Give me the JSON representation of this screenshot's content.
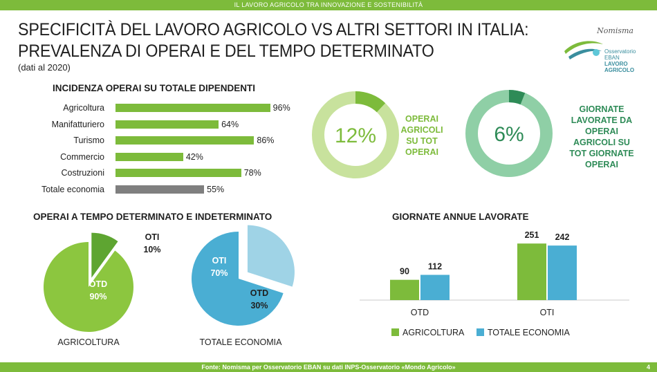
{
  "header": {
    "banner": "IL LAVORO AGRICOLO TRA INNOVAZIONE E SOSTENIBILITÀ"
  },
  "title": {
    "line1": "SPECIFICITÀ DEL LAVORO AGRICOLO VS ALTRI SETTORI IN ITALIA:",
    "line2": "PREVALENZA DI OPERAI E DEL TEMPO DETERMINATO",
    "subtitle": "(dati al 2020)"
  },
  "logo": {
    "brand": "Nomisma",
    "line1": "Osservatorio",
    "line2": "EBAN",
    "line3": "LAVORO",
    "line4": "AGRICOLO"
  },
  "footer": {
    "source": "Fonte: Nomisma per Osservatorio EBAN su dati INPS-Osservatorio «Mondo Agricolo»",
    "page": "4"
  },
  "colors": {
    "green": "#7dbb3b",
    "grey": "#7f7f7f",
    "blue": "#4aaed3",
    "lightblue": "#9fd3e6",
    "teal": "#2e8b57"
  },
  "chart_data": [
    {
      "type": "bar",
      "orientation": "horizontal",
      "title": "INCIDENZA OPERAI SU TOTALE DIPENDENTI",
      "categories": [
        "Agricoltura",
        "Manifatturiero",
        "Turismo",
        "Commercio",
        "Costruzioni",
        "Totale economia"
      ],
      "values": [
        96,
        64,
        86,
        42,
        78,
        55
      ],
      "value_labels": [
        "96%",
        "64%",
        "86%",
        "42%",
        "78%",
        "55%"
      ],
      "ylim": [
        0,
        100
      ]
    },
    {
      "type": "pie",
      "variant": "donut",
      "value": 12,
      "center_label": "12%",
      "label_lines": [
        "OPERAI",
        "AGRICOLI",
        "SU TOT",
        "OPERAI"
      ]
    },
    {
      "type": "pie",
      "variant": "donut",
      "value": 6,
      "center_label": "6%",
      "label_lines": [
        "GIORNATE",
        "LAVORATE DA",
        "OPERAI",
        "AGRICOLI SU",
        "TOT GIORNATE",
        "OPERAI"
      ]
    },
    {
      "type": "pie",
      "title": "OPERAI A TEMPO DETERMINATO E INDETERMINATO",
      "pies": [
        {
          "caption": "AGRICOLTURA",
          "slices": [
            {
              "name": "OTD",
              "value": 90,
              "label": "90%"
            },
            {
              "name": "OTI",
              "value": 10,
              "label": "10%"
            }
          ]
        },
        {
          "caption": "TOTALE ECONOMIA",
          "slices": [
            {
              "name": "OTI",
              "value": 70,
              "label": "70%"
            },
            {
              "name": "OTD",
              "value": 30,
              "label": "30%"
            }
          ]
        }
      ]
    },
    {
      "type": "bar",
      "title": "GIORNATE ANNUE LAVORATE",
      "categories": [
        "OTD",
        "OTI"
      ],
      "series": [
        {
          "name": "AGRICOLTURA",
          "values": [
            90,
            251
          ]
        },
        {
          "name": "TOTALE ECONOMIA",
          "values": [
            112,
            242
          ]
        }
      ],
      "ylim": [
        0,
        270
      ]
    }
  ]
}
